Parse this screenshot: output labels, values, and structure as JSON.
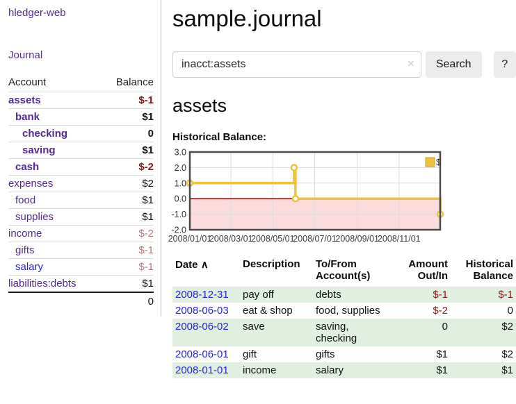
{
  "colors": {
    "purple_link": "#552a90",
    "blue_link": "#2222dd",
    "negative_strong": "#801515",
    "negative_soft": "#b87878",
    "negative": "#8b1a1a",
    "row_stripe_green": "#e1efe1",
    "series_gold": "#EDC240",
    "chart_negative_bg": "#fbdcdc",
    "zero_line": "#990000",
    "grid_line": "#dcdcdc",
    "chart_border": "#4a4a4a"
  },
  "sidebar": {
    "brand": "hledger-web",
    "nav_journal": "Journal",
    "accounts": {
      "col_account": "Account",
      "col_balance": "Balance",
      "rows": [
        {
          "name": "assets",
          "balance": "$-1",
          "indent": 1,
          "bold": true,
          "value": "neg-strong",
          "link": "purple"
        },
        {
          "name": "bank",
          "balance": "$1",
          "indent": 2,
          "bold": true,
          "value": "pos",
          "link": "purple"
        },
        {
          "name": "checking",
          "balance": "0",
          "indent": 3,
          "bold": true,
          "value": "pos",
          "link": "purple"
        },
        {
          "name": "saving",
          "balance": "$1",
          "indent": 3,
          "bold": true,
          "value": "pos",
          "link": "purple"
        },
        {
          "name": "cash",
          "balance": "$-2",
          "indent": 2,
          "bold": true,
          "value": "neg-strong",
          "link": "purple"
        },
        {
          "name": "expenses",
          "balance": "$2",
          "indent": 1,
          "bold": false,
          "value": "pos",
          "link": "purple"
        },
        {
          "name": "food",
          "balance": "$1",
          "indent": 2,
          "bold": false,
          "value": "pos",
          "link": "purple"
        },
        {
          "name": "supplies",
          "balance": "$1",
          "indent": 2,
          "bold": false,
          "value": "pos",
          "link": "purple"
        },
        {
          "name": "income",
          "balance": "$-2",
          "indent": 1,
          "bold": false,
          "value": "neg-soft",
          "link": "purple"
        },
        {
          "name": "gifts",
          "balance": "$-1",
          "indent": 2,
          "bold": false,
          "value": "neg-soft",
          "link": "purple"
        },
        {
          "name": "salary",
          "balance": "$-1",
          "indent": 2,
          "bold": false,
          "value": "neg-soft",
          "link": "blue"
        },
        {
          "name": "liabilities:debts",
          "balance": "$1",
          "indent": 1,
          "bold": false,
          "value": "pos",
          "link": "purple"
        }
      ],
      "total": "0"
    }
  },
  "header": {
    "title": "sample.journal"
  },
  "search": {
    "value": "inacct:assets",
    "clear_icon": "×",
    "search_label": "Search",
    "help_label": "?"
  },
  "account_view": {
    "heading": "assets",
    "chart_title": "Historical Balance:"
  },
  "chart_data": {
    "type": "line",
    "step": true,
    "title": "Historical Balance",
    "series": [
      {
        "name": "$",
        "color": "#EDC240",
        "points": [
          [
            "2008-01-01",
            1
          ],
          [
            "2008-06-01",
            2
          ],
          [
            "2008-06-03",
            0
          ],
          [
            "2008-12-31",
            -1
          ]
        ]
      }
    ],
    "x_start": "2008-01-01",
    "x_end": "2008-12-31",
    "xticks": [
      "2008/01/01",
      "2008/03/01",
      "2008/05/01",
      "2008/07/01",
      "2008/09/01",
      "2008/11/01"
    ],
    "yticks": [
      "3.0",
      "2.0",
      "1.0",
      "0.0",
      "-1.0",
      "-2.0"
    ],
    "ylim": [
      -2,
      3
    ],
    "grid": true,
    "negative_region": true,
    "legend": {
      "label": "$",
      "position": "top-right"
    }
  },
  "register": {
    "headers": {
      "date": "Date",
      "sort_icon": "∧",
      "description": "Description",
      "accounts": "To/From\nAccount(s)",
      "amount": "Amount\nOut/In",
      "balance": "Historical\nBalance"
    },
    "rows": [
      {
        "date": "2008-12-31",
        "description": "pay off",
        "accounts": "debts",
        "amount": "$-1",
        "amount_negative": true,
        "balance": "$-1",
        "balance_negative": true
      },
      {
        "date": "2008-06-03",
        "description": "eat & shop",
        "accounts": "food, supplies",
        "amount": "$-2",
        "amount_negative": true,
        "balance": "0",
        "balance_negative": false
      },
      {
        "date": "2008-06-02",
        "description": "save",
        "accounts": "saving, checking",
        "amount": "0",
        "amount_negative": false,
        "balance": "$2",
        "balance_negative": false
      },
      {
        "date": "2008-06-01",
        "description": "gift",
        "accounts": "gifts",
        "amount": "$1",
        "amount_negative": false,
        "balance": "$2",
        "balance_negative": false
      },
      {
        "date": "2008-01-01",
        "description": "income",
        "accounts": "salary",
        "amount": "$1",
        "amount_negative": false,
        "balance": "$1",
        "balance_negative": false
      }
    ]
  }
}
